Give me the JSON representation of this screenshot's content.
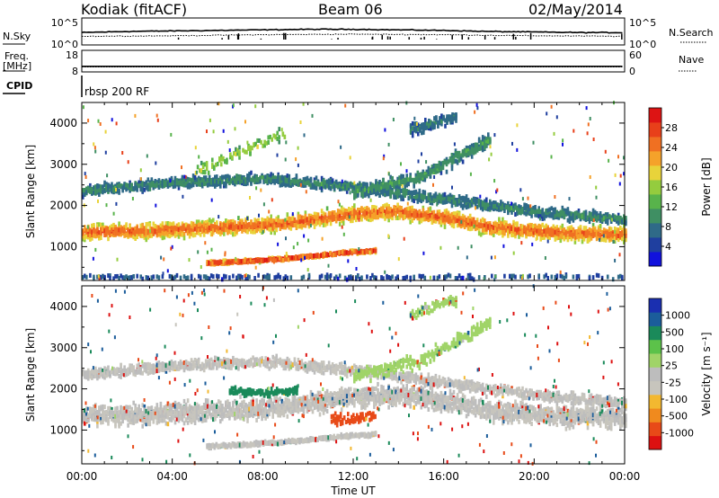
{
  "header": {
    "station": "Kodiak (fitACF)",
    "beam": "Beam 06",
    "date": "02/May/2014"
  },
  "left_labels": {
    "nsky": "N.Sky",
    "freq": "Freq.",
    "freq_unit": "[MHz]",
    "cpid": "CPID"
  },
  "right_labels": {
    "nsearch": "N.Search",
    "nave": "Nave"
  },
  "cpid_text": "rbsp 200 RF",
  "colors": {
    "power": [
      "#1111dd",
      "#1f3f9f",
      "#2f6a88",
      "#3f8f63",
      "#58b34b",
      "#94cc3e",
      "#e8d33a",
      "#f5a22a",
      "#f07022",
      "#e8401a",
      "#dd1414"
    ],
    "velocity": [
      "#dd1111",
      "#e84a18",
      "#f08a1e",
      "#f3b830",
      "#c7c5bd",
      "#bdbdbd",
      "#a0d468",
      "#5cc24a",
      "#1a8a5a",
      "#1b5d9b",
      "#1a2fb0"
    ],
    "ground_scatter": "#c2c0b8"
  },
  "chart_data": [
    {
      "type": "line",
      "panel": "N.Sky / N.Search",
      "ylabel_left": "N.Sky",
      "ylabel_right": "N.Search",
      "yticks_left": [
        "10^5",
        "10^0"
      ],
      "yticks_right": [
        "10^5",
        "10^0"
      ],
      "series": [
        {
          "name": "N.Sky",
          "x": [
            0,
            2,
            4,
            6,
            8,
            10,
            12,
            14,
            16,
            18,
            20,
            22,
            24
          ],
          "y": [
            2.3,
            2.5,
            2.6,
            2.7,
            2.8,
            2.9,
            2.9,
            2.8,
            2.7,
            2.5,
            2.4,
            2.3,
            2.3
          ]
        },
        {
          "name": "N.Search",
          "x": [
            0,
            4,
            8,
            12,
            16,
            20,
            24
          ],
          "y": [
            1.6,
            1.7,
            1.9,
            2.0,
            1.9,
            1.7,
            1.6
          ]
        }
      ],
      "xlim": [
        0,
        24
      ]
    },
    {
      "type": "line",
      "panel": "Freq / Nave",
      "ylabel_left": "Freq. [MHz]",
      "ylabel_right": "Nave",
      "yticks_left": [
        "18",
        "8"
      ],
      "yticks_right": [
        "60",
        "0"
      ],
      "series": [
        {
          "name": "Freq.",
          "x": [
            0,
            24
          ],
          "y": [
            10.6,
            10.6
          ]
        },
        {
          "name": "Nave",
          "x": [
            0,
            24
          ],
          "y": [
            14,
            14
          ]
        }
      ],
      "xlim": [
        0,
        24
      ]
    },
    {
      "type": "heatmap",
      "panel": "Power",
      "ylabel": "Slant Range [km]",
      "yticks": [
        "1000",
        "2000",
        "3000",
        "4000"
      ],
      "ylim": [
        180,
        4500
      ],
      "xlim": [
        0,
        24
      ],
      "colorbar_label": "Power [dB]",
      "colorbar_ticks": [
        "4",
        "8",
        "12",
        "16",
        "20",
        "24",
        "28"
      ],
      "clim": [
        0,
        32
      ],
      "bands": [
        {
          "x": [
            0,
            3,
            6,
            9,
            12,
            14,
            16,
            18,
            21,
            24
          ],
          "y": [
            1350,
            1380,
            1460,
            1560,
            1800,
            1850,
            1700,
            1470,
            1330,
            1300
          ],
          "width": 250,
          "density": 0.95,
          "value": 24
        },
        {
          "x": [
            0,
            4,
            8,
            12,
            16,
            20,
            24
          ],
          "y": [
            2350,
            2550,
            2650,
            2450,
            2150,
            1850,
            1650
          ],
          "width": 180,
          "density": 0.75,
          "value": 9
        },
        {
          "x": [
            5.5,
            7,
            8.5,
            10,
            11.5,
            13
          ],
          "y": [
            600,
            640,
            690,
            760,
            850,
            900
          ],
          "width": 60,
          "density": 0.95,
          "value": 27
        },
        {
          "x": [
            12,
            13.5,
            15,
            16,
            17,
            18
          ],
          "y": [
            2300,
            2500,
            2700,
            3000,
            3300,
            3600
          ],
          "width": 220,
          "density": 0.65,
          "value": 10
        },
        {
          "x": [
            14.5,
            15.5,
            16.5
          ],
          "y": [
            3800,
            4000,
            4150
          ],
          "width": 200,
          "density": 0.55,
          "value": 8
        },
        {
          "x": [
            5,
            6.5,
            8,
            9
          ],
          "y": [
            2800,
            3200,
            3500,
            3800
          ],
          "width": 250,
          "density": 0.25,
          "value": 15
        },
        {
          "x": [
            0,
            6,
            12,
            18,
            24
          ],
          "y": [
            260,
            260,
            260,
            260,
            260
          ],
          "width": 70,
          "density": 0.18,
          "value": 6
        }
      ]
    },
    {
      "type": "heatmap",
      "panel": "Velocity",
      "ylabel": "Slant Range [km]",
      "yticks": [
        "1000",
        "2000",
        "3000",
        "4000"
      ],
      "ylim": [
        180,
        4500
      ],
      "xlim": [
        0,
        24
      ],
      "colorbar_label": "Velocity [m s^-1]",
      "colorbar_ticks": [
        "1000",
        "500",
        "100",
        "25",
        "-25",
        "-100",
        "-500",
        "-1000"
      ],
      "clim": [
        -1000,
        1000
      ],
      "xlabel": "Time UT",
      "xticks": [
        "00:00",
        "04:00",
        "08:00",
        "12:00",
        "16:00",
        "20:00",
        "00:00"
      ],
      "xtick_values": [
        0,
        4,
        8,
        12,
        16,
        20,
        24
      ],
      "bands": [
        {
          "x": [
            0,
            3,
            6,
            9,
            12,
            14,
            16,
            18,
            21,
            24
          ],
          "y": [
            1350,
            1380,
            1460,
            1560,
            1800,
            1850,
            1700,
            1470,
            1330,
            1300
          ],
          "width": 330,
          "density": 0.95,
          "value": 0
        },
        {
          "x": [
            0,
            4,
            8,
            12,
            16,
            20,
            24
          ],
          "y": [
            2350,
            2550,
            2650,
            2450,
            2150,
            1850,
            1650
          ],
          "width": 180,
          "density": 0.7,
          "value": 0
        },
        {
          "x": [
            5.5,
            7,
            8.5,
            10,
            11.5,
            13
          ],
          "y": [
            600,
            640,
            690,
            760,
            850,
            900
          ],
          "width": 60,
          "density": 0.9,
          "value": 0
        },
        {
          "x": [
            6.5,
            8,
            9.5
          ],
          "y": [
            1950,
            1900,
            1950
          ],
          "width": 120,
          "density": 0.6,
          "value": 180
        },
        {
          "x": [
            11,
            12,
            13
          ],
          "y": [
            1300,
            1250,
            1400
          ],
          "width": 200,
          "density": 0.4,
          "value": -250
        },
        {
          "x": [
            12,
            13.5,
            15,
            16,
            17,
            18
          ],
          "y": [
            2300,
            2500,
            2700,
            3000,
            3300,
            3600
          ],
          "width": 220,
          "density": 0.5,
          "value": 60
        },
        {
          "x": [
            14.5,
            15.5,
            16.5
          ],
          "y": [
            3800,
            4000,
            4150
          ],
          "width": 200,
          "density": 0.45,
          "value": 40
        }
      ]
    }
  ]
}
